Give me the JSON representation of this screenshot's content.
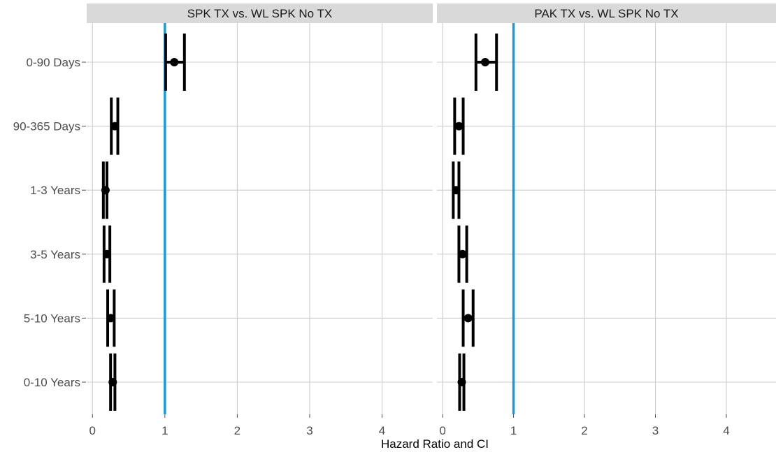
{
  "chart_data": [
    {
      "type": "forest",
      "panel_title": "SPK TX vs. WL SPK No TX",
      "categories": [
        "0-90 Days",
        "90-365 Days",
        "1-3 Years",
        "3-5 Years",
        "5-10 Years",
        "0-10 Years"
      ],
      "estimate": [
        1.13,
        0.31,
        0.18,
        0.2,
        0.25,
        0.28
      ],
      "lower": [
        1.01,
        0.26,
        0.15,
        0.16,
        0.21,
        0.25
      ],
      "upper": [
        1.27,
        0.35,
        0.2,
        0.24,
        0.3,
        0.31
      ],
      "reference_line": 1,
      "xlim": [
        -0.08,
        4.7
      ],
      "xticks": [
        "0",
        "1",
        "2",
        "3",
        "4"
      ],
      "grid": true
    },
    {
      "type": "forest",
      "panel_title": "PAK TX vs. WL SPK No TX",
      "categories": [
        "0-90 Days",
        "90-365 Days",
        "1-3 Years",
        "3-5 Years",
        "5-10 Years",
        "0-10 Years"
      ],
      "estimate": [
        0.6,
        0.23,
        0.19,
        0.28,
        0.36,
        0.27
      ],
      "lower": [
        0.47,
        0.17,
        0.15,
        0.23,
        0.29,
        0.24
      ],
      "upper": [
        0.76,
        0.29,
        0.23,
        0.34,
        0.43,
        0.3
      ],
      "reference_line": 1,
      "xlim": [
        -0.08,
        4.7
      ],
      "xticks": [
        "0",
        "1",
        "2",
        "3",
        "4"
      ],
      "grid": true
    }
  ],
  "xlabel": "Hazard Ratio and CI",
  "colors": {
    "reference_line": "#1b9bd1",
    "points": "#000000",
    "grid": "#cccccc",
    "strip_background": "#d9d9d9",
    "text": "#4d4d4d"
  }
}
